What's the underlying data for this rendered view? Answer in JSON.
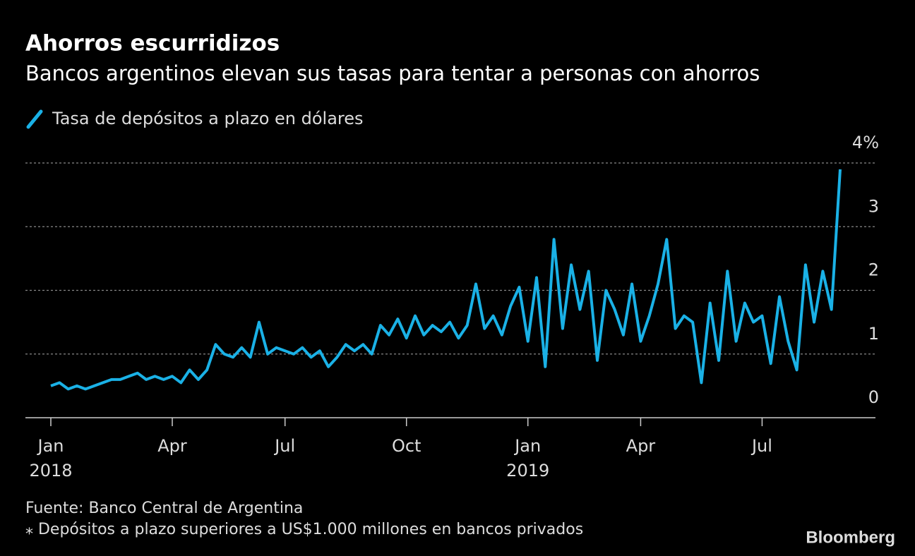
{
  "chart_data": {
    "type": "line",
    "title": "Ahorros escurridizos",
    "subtitle": "Bancos argentinos elevan sus tasas para tentar a personas con ahorros",
    "categories": [
      "Jan",
      null,
      null,
      null,
      null,
      null,
      null,
      null,
      null,
      null,
      null,
      null,
      null,
      null,
      "Apr",
      null,
      null,
      null,
      null,
      null,
      null,
      null,
      null,
      null,
      null,
      null,
      null,
      "Jul",
      null,
      null,
      null,
      null,
      null,
      null,
      null,
      null,
      null,
      null,
      null,
      null,
      null,
      "Oct",
      null,
      null,
      null,
      null,
      null,
      null,
      null,
      null,
      null,
      null,
      null,
      null,
      null,
      "Jan",
      null,
      null,
      null,
      null,
      null,
      null,
      null,
      null,
      null,
      null,
      null,
      null,
      "Apr",
      null,
      null,
      null,
      null,
      null,
      null,
      null,
      null,
      null,
      null,
      null,
      null,
      null,
      "Jul",
      null,
      null,
      null,
      null,
      null,
      null,
      null,
      null,
      null
    ],
    "category_years": [
      "2018",
      null,
      null,
      null,
      null,
      null,
      null,
      null,
      null,
      null,
      null,
      null,
      null,
      null,
      null,
      null,
      null,
      null,
      null,
      null,
      null,
      null,
      null,
      null,
      null,
      null,
      null,
      null,
      null,
      null,
      null,
      null,
      null,
      null,
      null,
      null,
      null,
      null,
      null,
      null,
      null,
      null,
      null,
      null,
      null,
      null,
      null,
      null,
      null,
      null,
      null,
      null,
      null,
      null,
      null,
      "2019",
      null,
      null,
      null,
      null,
      null,
      null,
      null,
      null,
      null,
      null,
      null,
      null,
      null,
      null,
      null,
      null,
      null,
      null,
      null,
      null,
      null,
      null,
      null,
      null,
      null,
      null,
      null,
      null,
      null,
      null,
      null,
      null,
      null,
      null,
      null,
      null
    ],
    "series": [
      {
        "name": "Tasa de depósitos a plazo en dólares",
        "color": "#1ab1e6",
        "values": [
          0.5,
          0.55,
          0.45,
          0.5,
          0.45,
          0.5,
          0.55,
          0.6,
          0.6,
          0.65,
          0.7,
          0.6,
          0.65,
          0.6,
          0.65,
          0.55,
          0.75,
          0.6,
          0.75,
          1.15,
          1.0,
          0.95,
          1.1,
          0.95,
          1.5,
          1.0,
          1.1,
          1.05,
          1.0,
          1.1,
          0.95,
          1.05,
          0.8,
          0.95,
          1.15,
          1.05,
          1.15,
          1.0,
          1.45,
          1.3,
          1.55,
          1.25,
          1.6,
          1.3,
          1.45,
          1.35,
          1.5,
          1.25,
          1.45,
          2.1,
          1.4,
          1.6,
          1.3,
          1.75,
          2.05,
          1.2,
          2.2,
          0.8,
          2.8,
          1.4,
          2.4,
          1.7,
          2.3,
          0.9,
          2.0,
          1.7,
          1.3,
          2.1,
          1.2,
          1.6,
          2.1,
          2.8,
          1.4,
          1.6,
          1.5,
          0.55,
          1.8,
          0.9,
          2.3,
          1.2,
          1.8,
          1.5,
          1.6,
          0.85,
          1.9,
          1.2,
          0.75,
          2.4,
          1.5,
          2.3,
          1.7,
          3.9
        ]
      }
    ],
    "ylim": [
      0,
      4
    ],
    "yticks": [
      0,
      1,
      2,
      3,
      {
        "value": 4,
        "label": "4%"
      }
    ],
    "grid": true,
    "source": "Fuente: Banco Central de Argentina",
    "note": "⁎ Depósitos a plazo superiores a US$1.000 millones en bancos privados",
    "brand": "Bloomberg"
  }
}
